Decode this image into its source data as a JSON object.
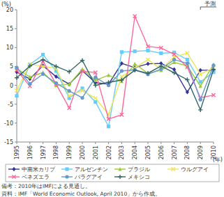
{
  "chart_data": {
    "type": "line",
    "y_label": "(%)",
    "x_label": "(年)",
    "annotation": "予測",
    "notes": [
      "備考：2010年はIMFによる見通し。",
      "資料：IMF「World Economic Outlook, April 2010」から作成。"
    ],
    "x": [
      1995,
      1996,
      1997,
      1998,
      1999,
      2000,
      2001,
      2002,
      2003,
      2004,
      2005,
      2006,
      2007,
      2008,
      2009,
      2010
    ],
    "xlim": [
      1995,
      2010
    ],
    "xticks": [
      1995,
      1996,
      1997,
      1998,
      1999,
      2000,
      2001,
      2002,
      2003,
      2004,
      2005,
      2006,
      2007,
      2008,
      2009,
      2010
    ],
    "ylim": [
      -15,
      20
    ],
    "yticks": [
      -15,
      -10,
      -5,
      0,
      5,
      10,
      15,
      20
    ],
    "grid": false,
    "legend": "bottom",
    "series": [
      {
        "name": "中南米カリブ",
        "color": "#333399",
        "marker": "diamond",
        "values": [
          3.5,
          1.7,
          5.2,
          2.3,
          0.3,
          3.9,
          0.7,
          0.3,
          5.8,
          4.7,
          5.7,
          5.8,
          4.2,
          -1.8,
          4.0,
          4.0
        ]
      },
      {
        "name": "アルゼンチン",
        "color": "#66ccff",
        "marker": "square",
        "values": [
          -2.8,
          5.5,
          8.1,
          3.8,
          -3.4,
          -0.8,
          -4.4,
          -10.9,
          8.8,
          9.0,
          9.2,
          8.5,
          8.7,
          6.8,
          0.9,
          3.5
        ]
      },
      {
        "name": "ブラジル",
        "color": "#99cc33",
        "marker": "triangle",
        "values": [
          4.4,
          2.2,
          3.4,
          0.0,
          0.3,
          4.3,
          1.3,
          2.7,
          1.1,
          5.7,
          3.2,
          4.0,
          6.1,
          5.1,
          -0.2,
          5.5
        ]
      },
      {
        "name": "ウルグアイ",
        "color": "#eee45a",
        "marker": "cross",
        "values": [
          -1.4,
          5.6,
          5.0,
          4.5,
          -2.8,
          -1.4,
          -3.4,
          -7.7,
          2.3,
          4.6,
          6.8,
          4.3,
          7.5,
          8.5,
          2.9,
          4.7
        ]
      },
      {
        "name": "ベネズエラ",
        "color": "#ff6699",
        "marker": "cross",
        "values": [
          4.0,
          -0.2,
          6.4,
          0.3,
          -6.0,
          3.7,
          3.4,
          -8.9,
          -7.8,
          18.3,
          10.3,
          9.9,
          8.2,
          4.8,
          -3.3,
          -2.6
        ]
      },
      {
        "name": "パラグアイ",
        "color": "#6699cc",
        "marker": "circle",
        "values": [
          4.7,
          0.4,
          3.0,
          0.6,
          -1.5,
          -3.3,
          2.1,
          0.0,
          3.8,
          4.1,
          2.9,
          4.3,
          6.8,
          5.8,
          -3.8,
          5.3
        ]
      },
      {
        "name": "メキシコ",
        "color": "#336666",
        "marker": "plus",
        "values": [
          2.0,
          5.1,
          6.8,
          5.0,
          3.6,
          6.6,
          0.0,
          0.8,
          1.4,
          4.0,
          3.2,
          5.1,
          3.3,
          1.5,
          -6.5,
          4.2
        ]
      }
    ]
  }
}
